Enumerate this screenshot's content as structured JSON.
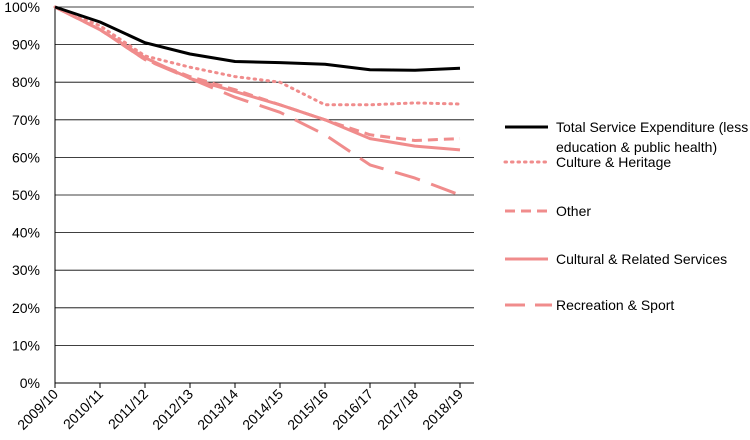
{
  "chart_data": {
    "type": "line",
    "title": "",
    "xlabel": "",
    "ylabel": "",
    "ylim": [
      0,
      100
    ],
    "y_tick_values": [
      0,
      10,
      20,
      30,
      40,
      50,
      60,
      70,
      80,
      90,
      100
    ],
    "y_tick_labels": [
      "0%",
      "10%",
      "20%",
      "30%",
      "40%",
      "50%",
      "60%",
      "70%",
      "80%",
      "90%",
      "100%"
    ],
    "categories": [
      "2009/10",
      "2010/11",
      "2011/12",
      "2012/13",
      "2013/14",
      "2014/15",
      "2015/16",
      "2016/17",
      "2017/18",
      "2018/19"
    ],
    "grid": "horizontal",
    "legend_position": "right",
    "series": [
      {
        "name": "Total Service Expenditure (less education & public health)",
        "name_lines": [
          "Total Service Expenditure (less",
          "education & public health)"
        ],
        "color": "#000000",
        "style": "solid",
        "values": [
          100,
          96,
          90.5,
          87.5,
          85.5,
          85.2,
          84.8,
          83.3,
          83.2,
          83.7
        ]
      },
      {
        "name": "Culture & Heritage",
        "name_lines": [
          "Culture & Heritage"
        ],
        "color": "#f08c8c",
        "style": "dotted",
        "values": [
          100,
          95,
          87,
          84,
          81.5,
          80,
          74,
          74,
          74.5,
          74.2
        ]
      },
      {
        "name": "Other",
        "name_lines": [
          "Other"
        ],
        "color": "#f08c8c",
        "style": "dashed",
        "values": [
          100,
          94,
          86,
          81.5,
          78,
          74,
          70,
          66,
          64.5,
          65
        ]
      },
      {
        "name": "Cultural & Related Services",
        "name_lines": [
          "Cultural & Related Services"
        ],
        "color": "#f08c8c",
        "style": "solid",
        "values": [
          100,
          94,
          86.5,
          81,
          77.5,
          74,
          70,
          65,
          63,
          62
        ]
      },
      {
        "name": "Recreation & Sport",
        "name_lines": [
          "Recreation & Sport"
        ],
        "color": "#f08c8c",
        "style": "longdash",
        "values": [
          100,
          94,
          86,
          81,
          76,
          72,
          66,
          58,
          54.5,
          50
        ]
      }
    ]
  }
}
